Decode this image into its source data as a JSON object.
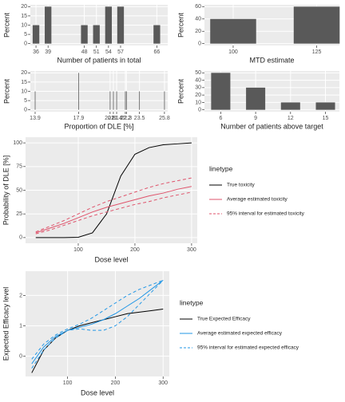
{
  "chart_data": [
    {
      "type": "bar",
      "xlabel": "Number of patients in total",
      "ylabel": "Percent",
      "x": [
        36,
        39,
        48,
        51,
        54,
        57,
        66
      ],
      "values": [
        10,
        20,
        10,
        10,
        20,
        20,
        10
      ],
      "color": "#595959",
      "xlim": [
        34.6,
        68.7
      ],
      "xticks": [
        36,
        39,
        48,
        51,
        54,
        57,
        66
      ],
      "ylim": [
        -1,
        21
      ],
      "yticks": [
        0,
        5,
        10,
        15,
        20
      ],
      "grid": true
    },
    {
      "type": "bar",
      "xlabel": "MTD estimate",
      "ylabel": "Percent",
      "x": [
        100,
        125
      ],
      "values": [
        40,
        60
      ],
      "color": "#595959",
      "xlim": [
        91.4,
        131.8
      ],
      "xticks": [
        100,
        125
      ],
      "ylim": [
        -3,
        63
      ],
      "yticks": [
        0,
        20,
        40,
        60
      ],
      "grid": true
    },
    {
      "type": "bar",
      "xlabel": "Proportion of DLE [%]",
      "ylabel": "Percent",
      "x": [
        13.9,
        17.9,
        20.8,
        21.1,
        21.4,
        22.2,
        22.3,
        23.5,
        25.8
      ],
      "values": [
        10,
        20,
        10,
        10,
        10,
        10,
        10,
        10,
        10
      ],
      "color": "#595959",
      "xlim": [
        13.46,
        26.1
      ],
      "xticks": [
        13.9,
        17.9,
        20.8,
        21.1,
        21.4,
        22.2,
        22.3,
        23.5,
        25.8
      ],
      "ylim": [
        -1,
        21
      ],
      "yticks": [
        0,
        5,
        10,
        15,
        20
      ],
      "grid": true
    },
    {
      "type": "bar",
      "xlabel": "Number of patients above target",
      "ylabel": "Percent",
      "x": [
        6,
        9,
        12,
        15
      ],
      "values": [
        50,
        30,
        10,
        10
      ],
      "color": "#595959",
      "xlim": [
        4.6,
        16.2
      ],
      "xticks": [
        6,
        9,
        12,
        15
      ],
      "ylim": [
        -2.5,
        52.5
      ],
      "yticks": [
        0,
        10,
        20,
        30,
        40,
        50
      ],
      "grid": true
    },
    {
      "type": "line",
      "xlabel": "Dose level",
      "ylabel": "Probability of DLE [%]",
      "legend_title": "linetype",
      "x": [
        25,
        50,
        75,
        100,
        125,
        150,
        175,
        200,
        225,
        250,
        275,
        300
      ],
      "series": [
        {
          "name": "True toxicity",
          "color": "#000000",
          "values": [
            0,
            0,
            0,
            0.3,
            5,
            25,
            65,
            88,
            95,
            98,
            99,
            100
          ]
        },
        {
          "name": "Average estimated toxicity",
          "color": "#DF536B",
          "values": [
            5,
            10,
            15,
            21,
            27,
            32,
            36,
            40,
            44,
            47,
            51,
            54
          ]
        },
        {
          "name": "95% interval for estimated toxicity",
          "color": "#DF536B",
          "linestyle": "dashed",
          "upper": [
            6,
            12,
            18,
            25,
            32,
            38,
            43,
            48,
            53,
            57,
            60,
            63
          ],
          "lower": [
            4,
            8,
            13,
            18,
            23,
            27,
            31,
            35,
            38,
            42,
            45,
            48
          ]
        }
      ],
      "xlim": [
        7,
        310
      ],
      "xticks": [
        100,
        200,
        300
      ],
      "ylim": [
        -6,
        106
      ],
      "yticks": [
        0,
        25,
        50,
        75,
        100
      ],
      "grid": true
    },
    {
      "type": "line",
      "xlabel": "Dose level",
      "ylabel": "Expected Efficacy level",
      "legend_title": "linetype",
      "x": [
        25,
        50,
        75,
        100,
        125,
        150,
        175,
        200,
        225,
        250,
        275,
        300
      ],
      "series": [
        {
          "name": "True Expected Efficacy",
          "color": "#000000",
          "values": [
            -0.55,
            0.2,
            0.6,
            0.85,
            1.0,
            1.1,
            1.2,
            1.3,
            1.4,
            1.45,
            1.5,
            1.55
          ]
        },
        {
          "name": "Average estimated expected efficacy",
          "color": "#2297E6",
          "values": [
            -0.25,
            0.3,
            0.65,
            0.85,
            0.95,
            1.05,
            1.2,
            1.4,
            1.65,
            1.9,
            2.2,
            2.5
          ]
        },
        {
          "name": "95% interval for estimated expected efficacy",
          "color": "#2297E6",
          "linestyle": "dashed",
          "upper": [
            -0.1,
            0.4,
            0.7,
            0.9,
            1.05,
            1.25,
            1.5,
            1.75,
            2.0,
            2.2,
            2.35,
            2.5
          ],
          "lower": [
            -0.4,
            0.2,
            0.6,
            0.85,
            0.9,
            0.85,
            0.85,
            1.0,
            1.3,
            1.7,
            2.1,
            2.5
          ]
        }
      ],
      "xlim": [
        12,
        313
      ],
      "xticks": [
        100,
        200,
        300
      ],
      "ylim": [
        -0.67,
        2.8
      ],
      "yticks": [
        0,
        1,
        2
      ],
      "grid": true
    }
  ]
}
